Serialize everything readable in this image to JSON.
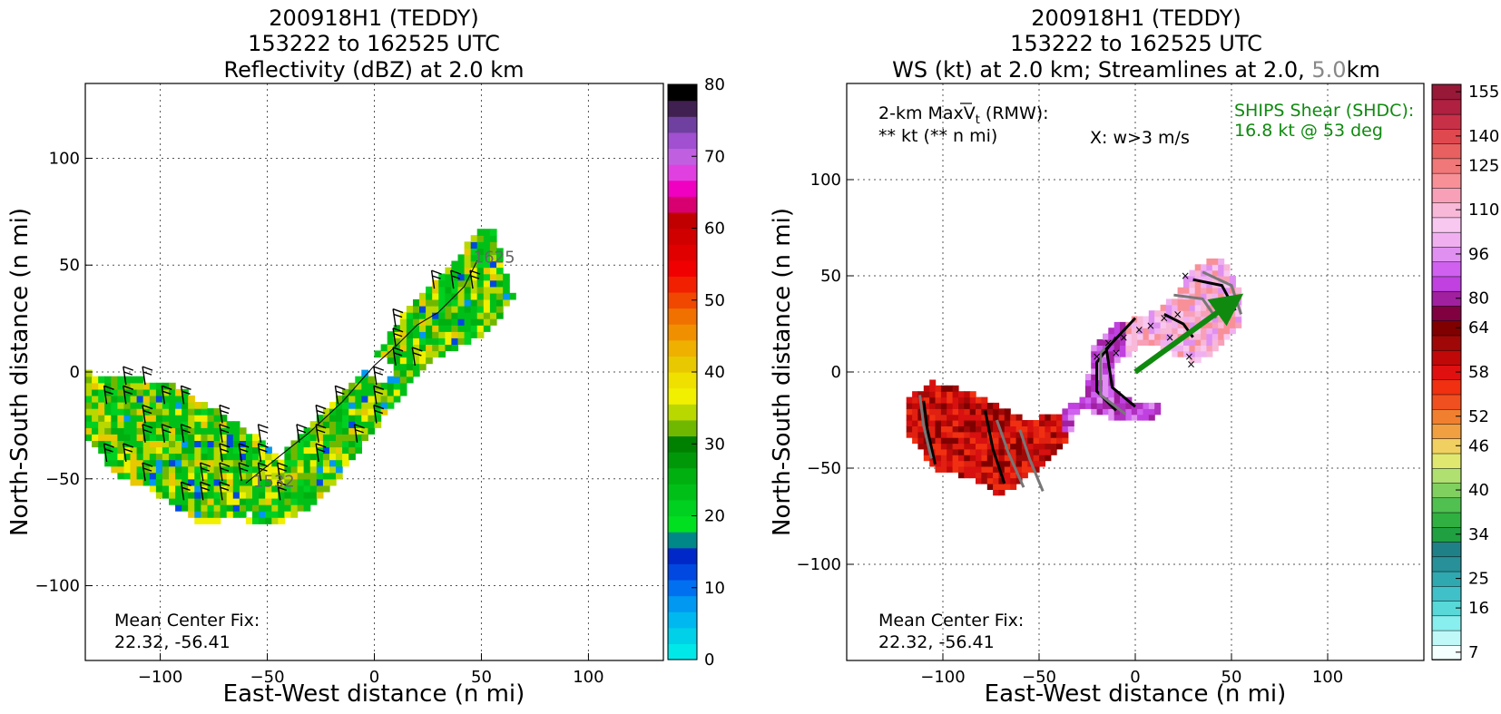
{
  "colors": {
    "shear_arrow": "#0f8a0f",
    "shear_text": "#0f8a0f",
    "streamline_level2": "#777777"
  },
  "panels": [
    {
      "id": "reflectivity",
      "title_line1": "200918H1 (TEDDY)",
      "title_line2": "153222 to 162525 UTC",
      "title_line3": "Reflectivity (dBZ) at 2.0 km",
      "xlabel": "East-West distance (n mi)",
      "ylabel": "North-South distance (n mi)",
      "center_fix_label": "Mean Center Fix:",
      "center_fix_value": "22.32, -56.41",
      "track_label_end": "1625",
      "track_label_start": "1532",
      "colorbar_ticks": [
        "0",
        "10",
        "20",
        "30",
        "40",
        "50",
        "60",
        "70",
        "80"
      ],
      "colorbar_colors": [
        "#00e8e8",
        "#00d0e8",
        "#00b8f0",
        "#0098f0",
        "#0070f0",
        "#0048e0",
        "#0028c8",
        "#008888",
        "#00e020",
        "#00d020",
        "#00c018",
        "#00b010",
        "#009808",
        "#008000",
        "#70b800",
        "#b8d800",
        "#f0f000",
        "#f0e000",
        "#e8c800",
        "#f0b000",
        "#f09000",
        "#f07000",
        "#f04800",
        "#f02000",
        "#f00000",
        "#e00000",
        "#d00000",
        "#c00000",
        "#d80070",
        "#f000c0",
        "#e040e0",
        "#c060e0",
        "#a050d0",
        "#7040a0",
        "#402050",
        "#000000"
      ]
    },
    {
      "id": "windspeed",
      "title_line1": "200918H1 (TEDDY)",
      "title_line2": "153222 to 162525 UTC",
      "title_line3_a": "WS (kt) at 2.0 km; Streamlines at 2.0, ",
      "title_line3_b": "5.0",
      "title_line3_c": "km",
      "xlabel": "East-West distance (n mi)",
      "ylabel": "North-South distance (n mi)",
      "max_vt_label": "2-km MaxV",
      "max_vt_sub": "t",
      "max_vt_rmw": " (RMW):",
      "max_vt_value": "** kt (** n mi)",
      "w_marker_note": "X: w>3 m/s",
      "shear_label": "SHIPS Shear (SHDC):",
      "shear_value": "16.8 kt @ 53 deg",
      "center_fix_label": "Mean Center Fix:",
      "center_fix_value": "22.32, -56.41",
      "colorbar_ticks": [
        "7",
        "16",
        "25",
        "34",
        "40",
        "46",
        "52",
        "58",
        "64",
        "80",
        "96",
        "110",
        "125",
        "140",
        "155"
      ],
      "colorbar_colors": [
        "#f4ffff",
        "#c0f8f8",
        "#88eeee",
        "#58d8d8",
        "#40c0c8",
        "#30a8b0",
        "#289098",
        "#208088",
        "#20a040",
        "#30b040",
        "#50c050",
        "#80d060",
        "#b0e070",
        "#e0e870",
        "#f0d060",
        "#f0a040",
        "#f08030",
        "#f05020",
        "#f03010",
        "#e01010",
        "#c00808",
        "#a00808",
        "#800000",
        "#800040",
        "#a020a0",
        "#c040e0",
        "#d060f0",
        "#e090f0",
        "#f0b0f0",
        "#f8c8f0",
        "#f8b8d8",
        "#f8a0b8",
        "#f89098",
        "#f07878",
        "#e86060",
        "#e04850",
        "#c83048",
        "#b02040",
        "#981838"
      ]
    }
  ],
  "chart_data": [
    {
      "type": "heatmap",
      "title": "200918H1 (TEDDY) 153222 to 162525 UTC Reflectivity (dBZ) at 2.0 km",
      "xlabel": "East-West distance (n mi)",
      "ylabel": "North-South distance (n mi)",
      "xlim": [
        -135,
        135
      ],
      "ylim": [
        -135,
        135
      ],
      "xticks": [
        -100,
        -50,
        0,
        50,
        100
      ],
      "yticks": [
        -100,
        -50,
        0,
        50,
        100
      ],
      "grid": true,
      "colorbar": {
        "label": "dBZ",
        "min": 0,
        "max": 80,
        "ticks": [
          0,
          10,
          20,
          30,
          40,
          50,
          60,
          70,
          80
        ]
      },
      "flight_track": [
        [
          -60,
          -52
        ],
        [
          -45,
          -40
        ],
        [
          -30,
          -28
        ],
        [
          -15,
          -14
        ],
        [
          0,
          3
        ],
        [
          10,
          12
        ],
        [
          20,
          22
        ],
        [
          30,
          28
        ],
        [
          42,
          40
        ],
        [
          48,
          52
        ]
      ],
      "track_times": {
        "start": "1532",
        "end": "1625"
      },
      "center_fix": [
        22.32,
        -56.41
      ]
    },
    {
      "type": "heatmap",
      "title": "200918H1 (TEDDY) 153222 to 162525 UTC WS (kt) at 2.0 km; Streamlines at 2.0, 5.0 km",
      "xlabel": "East-West distance (n mi)",
      "ylabel": "North-South distance (n mi)",
      "xlim": [
        -150,
        150
      ],
      "ylim": [
        -150,
        150
      ],
      "xticks": [
        -100,
        -50,
        0,
        50,
        100
      ],
      "yticks": [
        -100,
        -50,
        0,
        50,
        100
      ],
      "grid": true,
      "colorbar": {
        "label": "kt",
        "min": 7,
        "max": 160,
        "ticks": [
          7,
          16,
          25,
          34,
          40,
          46,
          52,
          58,
          64,
          80,
          96,
          110,
          125,
          140,
          155
        ]
      },
      "shear_vector": {
        "magnitude_kt": 16.8,
        "direction_deg": 53,
        "from": [
          0,
          0
        ],
        "to": [
          55,
          40
        ]
      },
      "updraft_markers_w_gt_3ms": [
        [
          -20,
          8
        ],
        [
          -14,
          15
        ],
        [
          -10,
          10
        ],
        [
          -6,
          18
        ],
        [
          2,
          22
        ],
        [
          8,
          24
        ],
        [
          15,
          28
        ],
        [
          22,
          30
        ],
        [
          26,
          50
        ],
        [
          28,
          8
        ],
        [
          29,
          4
        ],
        [
          18,
          18
        ]
      ],
      "center_fix": [
        22.32,
        -56.41
      ]
    }
  ]
}
